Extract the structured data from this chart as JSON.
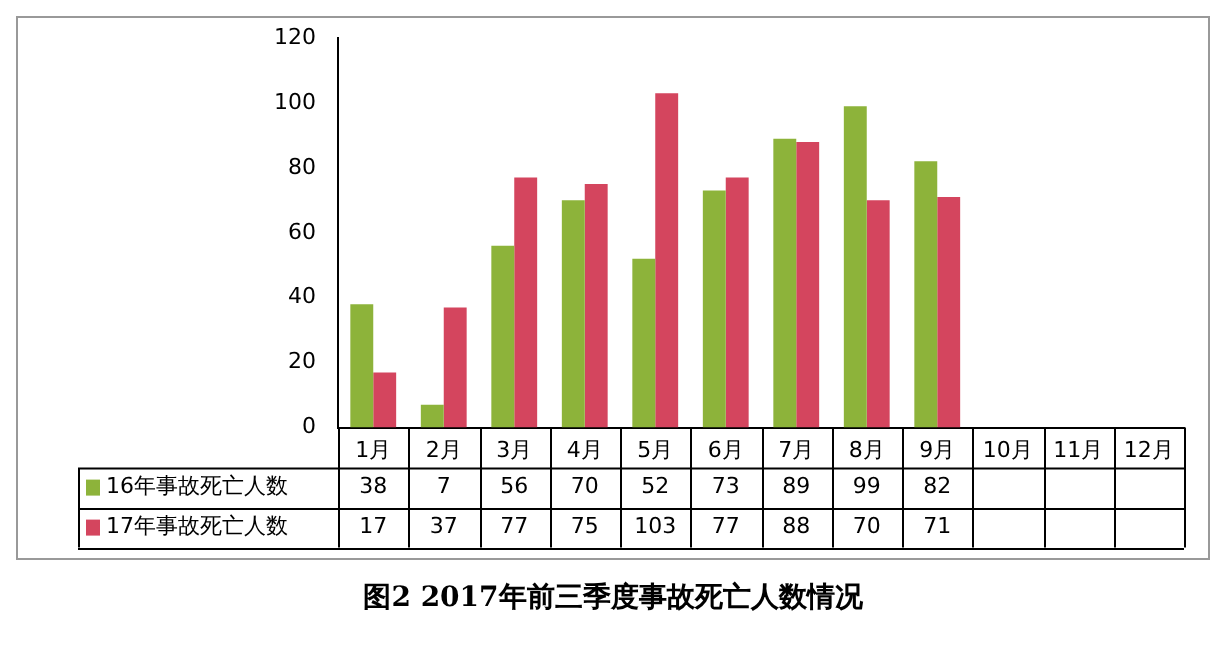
{
  "chart_data": {
    "type": "bar",
    "title": "图2  2017年前三季度事故死亡人数情况",
    "categories": [
      "1月",
      "2月",
      "3月",
      "4月",
      "5月",
      "6月",
      "7月",
      "8月",
      "9月",
      "10月",
      "11月",
      "12月"
    ],
    "series": [
      {
        "name": "16年事故死亡人数",
        "color": "#8db33a",
        "values": [
          38,
          7,
          56,
          70,
          52,
          73,
          89,
          99,
          82,
          null,
          null,
          null
        ]
      },
      {
        "name": "17年事故死亡人数",
        "color": "#d4455e",
        "values": [
          17,
          37,
          77,
          75,
          103,
          77,
          88,
          70,
          71,
          null,
          null,
          null
        ]
      }
    ],
    "ylim": [
      0,
      120
    ],
    "yticks": [
      0,
      20,
      40,
      60,
      80,
      100,
      120
    ],
    "grid": false,
    "legend": "bottom",
    "data_labels": true
  }
}
